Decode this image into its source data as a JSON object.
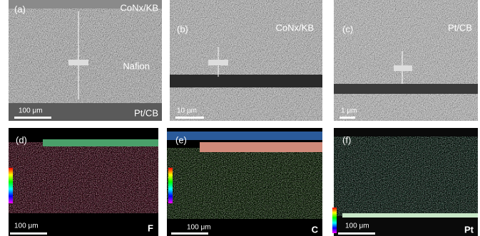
{
  "panels": [
    {
      "label": "(a)",
      "top_right": "CoNx/KB",
      "middle_right": "Nafion",
      "bottom_right": "Pt/CB",
      "scale_bar": "100 μm"
    },
    {
      "label": "(b)",
      "top_right": "CoNx/KB",
      "scale_bar": "10 μm"
    },
    {
      "label": "(c)",
      "top_right": "Pt/CB",
      "scale_bar": "1 μm"
    },
    {
      "label": "(d)",
      "scale_bar": "100 μm",
      "element": "F"
    },
    {
      "label": "(e)",
      "scale_bar": "100 μm",
      "element": "C"
    },
    {
      "label": "(f)",
      "scale_bar": "100 μm",
      "element": "Pt"
    }
  ]
}
